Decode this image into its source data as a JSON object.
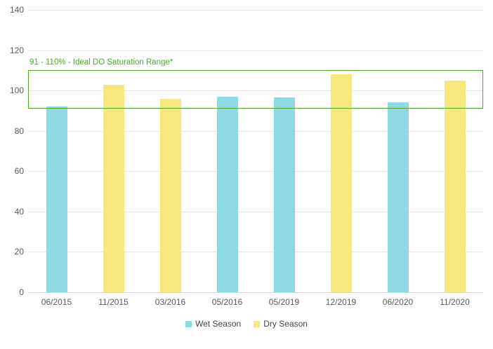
{
  "chart_data": {
    "type": "bar",
    "title": "",
    "categories": [
      "06/2015",
      "11/2015",
      "03/2016",
      "05/2016",
      "05/2019",
      "12/2019",
      "06/2020",
      "11/2020"
    ],
    "series": [
      {
        "name": "Wet Season",
        "color": "#8FD9E3",
        "values": [
          92,
          null,
          null,
          97,
          96.5,
          null,
          94,
          null
        ]
      },
      {
        "name": "Dry Season",
        "color": "#F7E87D",
        "values": [
          null,
          103,
          96,
          null,
          null,
          108,
          null,
          105
        ]
      }
    ],
    "axis": {
      "ymin": 0,
      "ymax": 140,
      "ystep": 20,
      "grid": true,
      "xlabel": "",
      "ylabel": ""
    },
    "annotation": {
      "label": "91 - 110% - Ideal DO Saturation Range*",
      "from": 91,
      "to": 110,
      "color": "#4EA72E"
    },
    "legend_position": "bottom",
    "colors": {
      "gridline": "#E6E6E6",
      "axis_line": "#D4D4D4",
      "tick_text": "#595959",
      "background": "#FFFFFF"
    }
  }
}
